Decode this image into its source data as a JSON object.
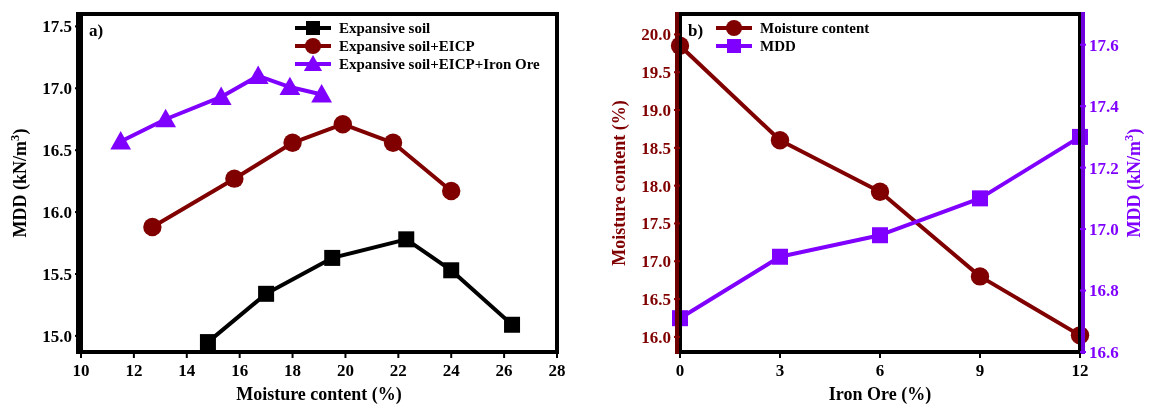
{
  "chart_data": [
    {
      "type": "line",
      "xlabel": "Moisture content (%)",
      "ylabel": "MDD (kN/m$^{3}$)",
      "annotations": [
        "a)"
      ],
      "xlim": [
        10,
        28
      ],
      "xticks": [
        10,
        12,
        14,
        16,
        18,
        20,
        22,
        24,
        26,
        28
      ],
      "ylim": [
        14.87,
        17.6
      ],
      "yticks": [
        {
          "value": 15,
          "label": "15.0"
        },
        15.5,
        {
          "value": 16,
          "label": "16.0"
        },
        16.5,
        {
          "value": 17,
          "label": "17.0"
        },
        17.5
      ],
      "legend": "top right",
      "grid": false,
      "series": [
        {
          "name": "Expansive soil",
          "color": "#000000",
          "marker": "square",
          "x": [
            14.8,
            17,
            19.5,
            22.3,
            24,
            26.3
          ],
          "values": [
            14.95,
            15.34,
            15.63,
            15.78,
            15.53,
            15.09
          ]
        },
        {
          "name": "Expansive soil+EICP",
          "color": "#800000",
          "marker": "circle",
          "x": [
            12.7,
            15.8,
            18,
            19.9,
            21.8,
            24
          ],
          "values": [
            15.88,
            16.27,
            16.56,
            16.71,
            16.56,
            16.17
          ]
        },
        {
          "name": "Expansive soil+EICP+Iron Ore",
          "color": "#8000ff",
          "marker": "triangle",
          "x": [
            11.5,
            13.2,
            15.3,
            16.7,
            17.9,
            19.1
          ],
          "values": [
            16.57,
            16.75,
            16.93,
            17.1,
            17.01,
            16.95
          ]
        }
      ]
    },
    {
      "type": "line",
      "xlabel": "Iron Ore (%)",
      "ylabel": "Moisture content (%)",
      "y2label": "MDD (kN/m$^{3}$)",
      "annotations": [
        "b)"
      ],
      "xlim": [
        0,
        12
      ],
      "xticks": [
        0,
        3,
        6,
        9,
        12
      ],
      "ylim": [
        15.8,
        20.27
      ],
      "yticks": [
        {
          "value": 16,
          "label": "16.0"
        },
        16.5,
        {
          "value": 17,
          "label": "17.0"
        },
        17.5,
        {
          "value": 18,
          "label": "18.0"
        },
        18.5,
        {
          "value": 19,
          "label": "19.0"
        },
        19.5,
        {
          "value": 20,
          "label": "20.0"
        }
      ],
      "y2lim": [
        16.6,
        17.7
      ],
      "y2ticks": [
        16.6,
        16.8,
        {
          "value": 17,
          "label": "17.0"
        },
        17.2,
        17.4,
        17.6
      ],
      "legend": "top left",
      "grid": false,
      "series": [
        {
          "name": "Moisture content",
          "color": "#800000",
          "marker": "circle",
          "x": [
            0,
            3,
            6,
            9,
            12
          ],
          "values": [
            19.85,
            18.6,
            17.92,
            16.8,
            16.02
          ]
        },
        {
          "name": "MDD",
          "color": "#8000ff",
          "marker": "square",
          "axis": "y2",
          "x": [
            0,
            3,
            6,
            9,
            12
          ],
          "values": [
            16.71,
            16.91,
            16.98,
            17.1,
            17.3
          ]
        }
      ]
    }
  ]
}
